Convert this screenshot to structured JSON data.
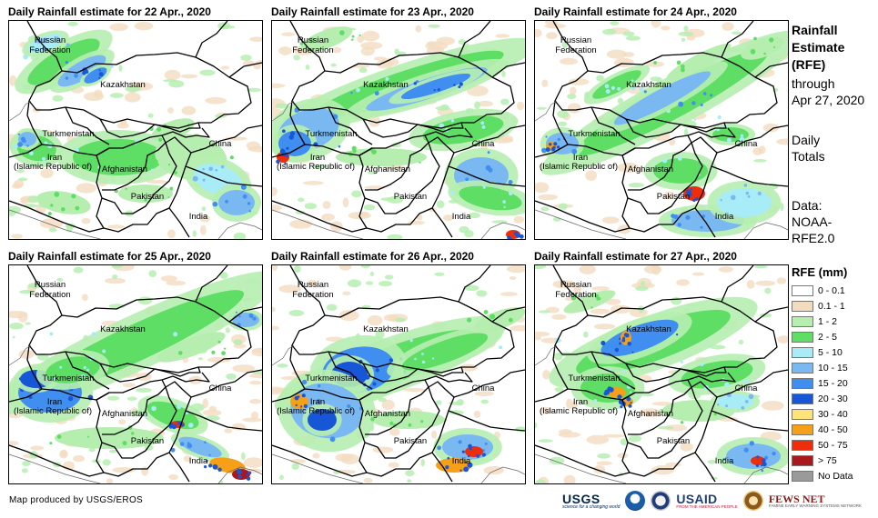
{
  "panels": [
    {
      "title": "Daily Rainfall estimate for 22 Apr., 2020",
      "day": 22
    },
    {
      "title": "Daily Rainfall estimate for 23 Apr., 2020",
      "day": 23
    },
    {
      "title": "Daily Rainfall estimate for 24 Apr., 2020",
      "day": 24
    },
    {
      "title": "Daily Rainfall estimate for 25 Apr., 2020",
      "day": 25
    },
    {
      "title": "Daily Rainfall estimate for 26 Apr., 2020",
      "day": 26
    },
    {
      "title": "Daily Rainfall estimate for 27 Apr., 2020",
      "day": 27
    }
  ],
  "countries": {
    "russia_line1": "Russian",
    "russia_line2": "Federation",
    "kazakhstan": "Kazakhstan",
    "turkmenistan": "Turkmenistan",
    "iran_line1": "Iran",
    "iran_line2": "(Islamic Republic of)",
    "afghanistan": "Afghanistan",
    "pakistan": "Pakistan",
    "india": "India",
    "china": "China"
  },
  "sidebar": {
    "title_line1": "Rainfall",
    "title_line2": "Estimate",
    "title_line3": "(RFE)",
    "through_line1": "through",
    "through_line2": "Apr 27, 2020",
    "totals_line1": "Daily",
    "totals_line2": "Totals",
    "data_line1": "Data:",
    "data_line2": "NOAA-",
    "data_line3": "RFE2.0"
  },
  "legend": {
    "title": "RFE (mm)",
    "items": [
      {
        "label": "0 - 0.1",
        "color": "#ffffff"
      },
      {
        "label": "0.1 - 1",
        "color": "#f2dcc0"
      },
      {
        "label": "1 - 2",
        "color": "#b6eeb0"
      },
      {
        "label": "2 - 5",
        "color": "#5ede64"
      },
      {
        "label": "5 - 10",
        "color": "#a8ecf8"
      },
      {
        "label": "10 - 15",
        "color": "#7ab8f2"
      },
      {
        "label": "15 - 20",
        "color": "#3f8ef0"
      },
      {
        "label": "20 - 30",
        "color": "#1756d6"
      },
      {
        "label": "30 - 40",
        "color": "#fde37a"
      },
      {
        "label": "40 - 50",
        "color": "#f5a017"
      },
      {
        "label": "50 - 75",
        "color": "#f02d0a"
      },
      {
        "label": "> 75",
        "color": "#a8181c"
      },
      {
        "label": "No Data",
        "color": "#9a9a9a"
      }
    ]
  },
  "footer": {
    "credit": "Map produced by USGS/EROS"
  },
  "logos": {
    "usgs": "USGS",
    "usgs_tagline": "science for a changing world",
    "noaa_icon": "noaa-seal-icon",
    "usaid": "USAID",
    "usaid_tagline": "FROM THE AMERICAN PEOPLE",
    "fews": "FEWS NET",
    "fews_tagline": "FAMINE EARLY WARNING SYSTEMS NETWORK"
  }
}
